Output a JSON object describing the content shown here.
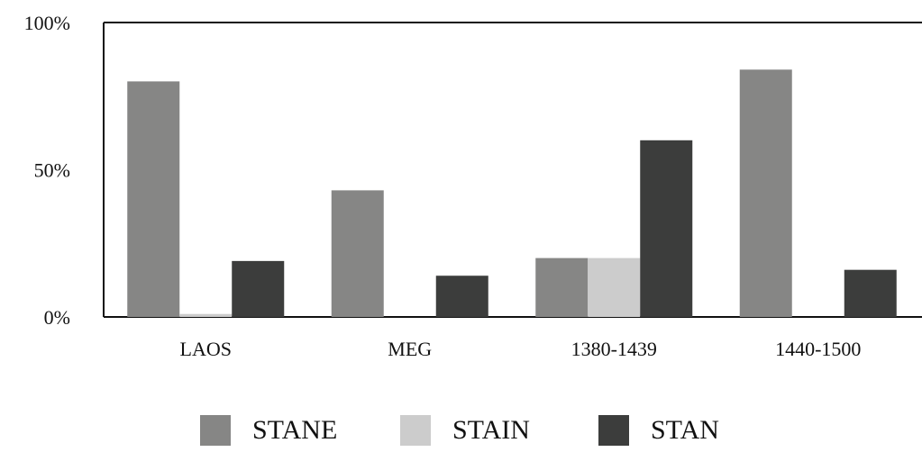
{
  "chart_data": {
    "type": "bar",
    "categories": [
      "LAOS",
      "MEG",
      "1380-1439",
      "1440-1500"
    ],
    "series": [
      {
        "name": "STANE",
        "color": "#868685",
        "values": [
          80,
          43,
          20,
          84
        ]
      },
      {
        "name": "STAIN",
        "color": "#cccccc",
        "values": [
          1,
          0,
          20,
          0
        ]
      },
      {
        "name": "STAN",
        "color": "#3c3d3c",
        "values": [
          19,
          14,
          60,
          16
        ]
      }
    ],
    "ylim": [
      0,
      100
    ],
    "yticks": [
      "0%",
      "50%",
      "100%"
    ],
    "grid": false,
    "legend_position": "bottom"
  }
}
